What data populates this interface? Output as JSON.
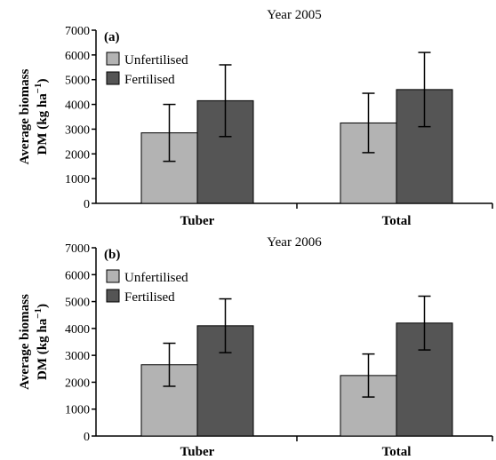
{
  "colors": {
    "unfertilised": "#b3b3b3",
    "fertilised": "#555555"
  },
  "chart_data": [
    {
      "type": "bar",
      "panel_label": "(a)",
      "title": "Year 2005",
      "ylabel_line1": "Average biomass",
      "ylabel_line2": "DM (kg ha",
      "ylabel_sup": "−1",
      "ylabel_close": ")",
      "ylim": [
        0,
        7000
      ],
      "yticks": [
        0,
        1000,
        2000,
        3000,
        4000,
        5000,
        6000,
        7000
      ],
      "categories": [
        "Tuber",
        "Total"
      ],
      "legend": "top-left",
      "grid": false,
      "series": [
        {
          "name": "Unfertilised",
          "values": [
            2850,
            3250
          ],
          "errors": [
            1150,
            1200
          ]
        },
        {
          "name": "Fertilised",
          "values": [
            4150,
            4600
          ],
          "errors": [
            1450,
            1500
          ]
        }
      ]
    },
    {
      "type": "bar",
      "panel_label": "(b)",
      "title": "Year 2006",
      "ylabel_line1": "Average biomass",
      "ylabel_line2": "DM (kg ha",
      "ylabel_sup": "−1",
      "ylabel_close": ")",
      "ylim": [
        0,
        7000
      ],
      "yticks": [
        0,
        1000,
        2000,
        3000,
        4000,
        5000,
        6000,
        7000
      ],
      "categories": [
        "Tuber",
        "Total"
      ],
      "legend": "top-left",
      "grid": false,
      "series": [
        {
          "name": "Unfertilised",
          "values": [
            2650,
            2250
          ],
          "errors": [
            800,
            800
          ]
        },
        {
          "name": "Fertilised",
          "values": [
            4100,
            4200
          ],
          "errors": [
            1000,
            1000
          ]
        }
      ]
    }
  ]
}
